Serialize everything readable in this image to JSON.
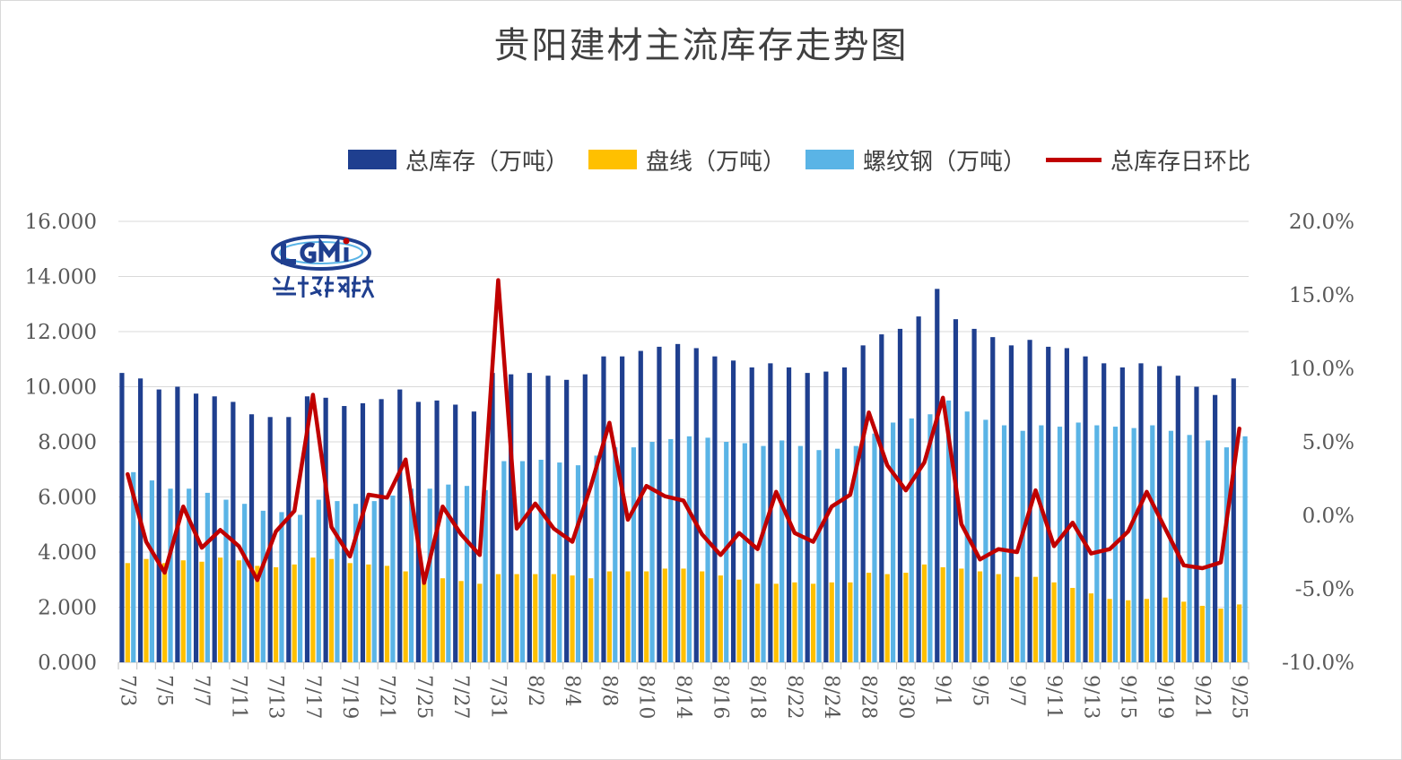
{
  "chart_data": {
    "type": "bar",
    "title": "贵阳建材主流库存走势图",
    "categories": [
      "7/3",
      "7/4",
      "7/5",
      "7/6",
      "7/7",
      "7/10",
      "7/11",
      "7/12",
      "7/13",
      "7/14",
      "7/17",
      "7/18",
      "7/19",
      "7/20",
      "7/21",
      "7/24",
      "7/25",
      "7/26",
      "7/27",
      "7/28",
      "7/31",
      "8/1",
      "8/2",
      "8/3",
      "8/4",
      "8/7",
      "8/8",
      "8/9",
      "8/10",
      "8/11",
      "8/14",
      "8/15",
      "8/16",
      "8/17",
      "8/18",
      "8/21",
      "8/22",
      "8/23",
      "8/24",
      "8/25",
      "8/28",
      "8/29",
      "8/30",
      "8/31",
      "9/1",
      "9/4",
      "9/5",
      "9/6",
      "9/7",
      "9/8",
      "9/11",
      "9/12",
      "9/13",
      "9/14",
      "9/15",
      "9/18",
      "9/19",
      "9/20",
      "9/21",
      "9/22",
      "9/25"
    ],
    "x_tick_labels": [
      "7/3",
      "7/5",
      "7/7",
      "7/11",
      "7/13",
      "7/17",
      "7/19",
      "7/21",
      "7/25",
      "7/27",
      "7/31",
      "8/2",
      "8/4",
      "8/8",
      "8/10",
      "8/14",
      "8/16",
      "8/18",
      "8/22",
      "8/24",
      "8/28",
      "8/30",
      "9/1",
      "9/5",
      "9/7",
      "9/11",
      "9/13",
      "9/15",
      "9/19",
      "9/21",
      "9/25"
    ],
    "series": [
      {
        "name": "总库存（万吨）",
        "axis": "left",
        "color": "#1f3f8f",
        "values": [
          10.5,
          10.3,
          9.9,
          10.0,
          9.75,
          9.65,
          9.45,
          9.0,
          8.9,
          8.9,
          9.65,
          9.6,
          9.3,
          9.4,
          9.55,
          9.9,
          9.45,
          9.5,
          9.35,
          9.1,
          10.5,
          10.45,
          10.5,
          10.4,
          10.25,
          10.45,
          11.1,
          11.1,
          11.3,
          11.45,
          11.55,
          11.4,
          11.1,
          10.95,
          10.7,
          10.85,
          10.7,
          10.5,
          10.55,
          10.7,
          11.5,
          11.9,
          12.1,
          12.55,
          13.55,
          12.45,
          12.1,
          11.8,
          11.5,
          11.7,
          11.45,
          11.4,
          11.1,
          10.85,
          10.7,
          10.85,
          10.75,
          10.4,
          10.0,
          9.7,
          10.3
        ]
      },
      {
        "name": "盘线（万吨）",
        "axis": "left",
        "color": "#ffc000",
        "values": [
          3.6,
          3.75,
          3.6,
          3.7,
          3.65,
          3.8,
          3.7,
          3.5,
          3.45,
          3.55,
          3.8,
          3.75,
          3.6,
          3.55,
          3.5,
          3.3,
          3.15,
          3.05,
          2.95,
          2.85,
          3.2,
          3.2,
          3.2,
          3.2,
          3.15,
          3.05,
          3.3,
          3.3,
          3.3,
          3.4,
          3.4,
          3.3,
          3.15,
          3.0,
          2.85,
          2.85,
          2.9,
          2.85,
          2.9,
          2.9,
          3.25,
          3.2,
          3.25,
          3.55,
          3.45,
          3.4,
          3.3,
          3.2,
          3.1,
          3.1,
          2.9,
          2.7,
          2.5,
          2.3,
          2.25,
          2.3,
          2.35,
          2.2,
          2.05,
          1.95,
          2.1
        ]
      },
      {
        "name": "螺纹钢（万吨）",
        "axis": "left",
        "color": "#5ab4e6",
        "values": [
          6.9,
          6.6,
          6.3,
          6.3,
          6.15,
          5.9,
          5.75,
          5.5,
          5.45,
          5.35,
          5.9,
          5.85,
          5.75,
          5.85,
          6.05,
          6.3,
          6.3,
          6.45,
          6.4,
          6.25,
          7.3,
          7.3,
          7.35,
          7.25,
          7.15,
          7.5,
          7.8,
          7.8,
          8.0,
          8.1,
          8.2,
          8.15,
          8.0,
          7.95,
          7.85,
          8.05,
          7.85,
          7.7,
          7.75,
          7.85,
          8.3,
          8.7,
          8.85,
          9.0,
          9.5,
          9.1,
          8.8,
          8.6,
          8.4,
          8.6,
          8.55,
          8.7,
          8.6,
          8.55,
          8.5,
          8.6,
          8.4,
          8.25,
          8.05,
          7.8,
          8.2
        ]
      },
      {
        "name": "总库存日环比",
        "axis": "right",
        "color": "#c00000",
        "values": [
          2.8,
          -1.8,
          -3.9,
          0.6,
          -2.2,
          -1.0,
          -2.1,
          -4.4,
          -1.1,
          0.3,
          8.2,
          -0.8,
          -2.8,
          1.4,
          1.2,
          3.8,
          -4.6,
          0.6,
          -1.3,
          -2.7,
          16.0,
          -0.9,
          0.8,
          -0.9,
          -1.8,
          2.0,
          6.3,
          -0.3,
          2.0,
          1.3,
          1.0,
          -1.3,
          -2.7,
          -1.2,
          -2.3,
          1.6,
          -1.2,
          -1.8,
          0.6,
          1.4,
          7.0,
          3.4,
          1.7,
          3.6,
          8.0,
          -0.6,
          -3.0,
          -2.3,
          -2.5,
          1.7,
          -2.1,
          -0.5,
          -2.6,
          -2.3,
          -1.1,
          1.6,
          -0.9,
          -3.4,
          -3.6,
          -3.2,
          5.9
        ]
      }
    ],
    "y_left": {
      "ylim": [
        0,
        16
      ],
      "ticks": [
        "0.000",
        "2.000",
        "4.000",
        "6.000",
        "8.000",
        "10.000",
        "12.000",
        "14.000",
        "16.000"
      ]
    },
    "y_right": {
      "ylim": [
        -10,
        20
      ],
      "ticks": [
        "-10.0%",
        "-5.0%",
        "0.0%",
        "5.0%",
        "10.0%",
        "15.0%",
        "20.0%"
      ]
    },
    "legend_position": "top",
    "grid": true
  },
  "legend": [
    {
      "label": "总库存（万吨）",
      "color": "#1f3f8f",
      "kind": "bar"
    },
    {
      "label": "盘线（万吨）",
      "color": "#ffc000",
      "kind": "bar"
    },
    {
      "label": "螺纹钢（万吨）",
      "color": "#5ab4e6",
      "kind": "bar"
    },
    {
      "label": "总库存日环比",
      "color": "#c00000",
      "kind": "line"
    }
  ],
  "logo": {
    "brand_text": "LGMi",
    "brand_cn": "兰格钢铁"
  }
}
